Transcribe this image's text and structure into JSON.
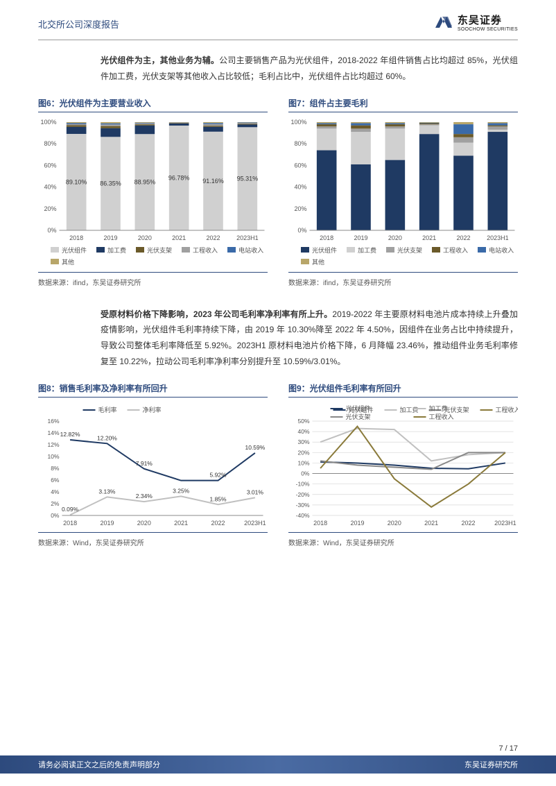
{
  "header": {
    "title": "北交所公司深度报告",
    "logo_cn": "东吴证券",
    "logo_en": "SOOCHOW SECURITIES"
  },
  "para1": {
    "bold": "光伏组件为主，其他业务为辅。",
    "rest": "公司主要销售产品为光伏组件，2018-2022 年组件销售占比均超过 85%，光伏组件加工费，光伏支架等其他收入占比较低；毛利占比中，光伏组件占比均超过 60%。"
  },
  "para2": {
    "bold": "受原材料价格下降影响，2023 年公司毛利率净利率有所上升。",
    "rest": "2019-2022 年主要原材料电池片成本持续上升叠加疫情影响，光伏组件毛利率持续下降，由 2019 年 10.30%降至 2022 年 4.50%，因组件在业务占比中持续提升，导致公司整体毛利率降低至 5.92%。2023H1 原材料电池片价格下降，6 月降幅 23.46%，推动组件业务毛利率修复至 10.22%，拉动公司毛利率净利率分别提升至 10.59%/3.01%。"
  },
  "chart6": {
    "title": "图6：光伏组件为主要营业收入",
    "type": "stacked-bar",
    "categories": [
      "2018",
      "2019",
      "2020",
      "2021",
      "2022",
      "2023H1"
    ],
    "series": [
      {
        "name": "光伏组件",
        "color": "#d0d0d0",
        "values": [
          89.1,
          86.35,
          88.95,
          96.78,
          91.16,
          95.31
        ]
      },
      {
        "name": "加工费",
        "color": "#1f3a63",
        "values": [
          6.5,
          8.0,
          8.0,
          2.0,
          4.5,
          2.5
        ]
      },
      {
        "name": "光伏支架",
        "color": "#6b5a2a",
        "values": [
          1.5,
          2.0,
          1.0,
          0.5,
          1.0,
          0.7
        ]
      },
      {
        "name": "工程收入",
        "color": "#a0a0a0",
        "values": [
          1.0,
          1.5,
          1.0,
          0.3,
          1.5,
          0.7
        ]
      },
      {
        "name": "电站收入",
        "color": "#3a6aa8",
        "values": [
          1.0,
          1.0,
          0.5,
          0.2,
          1.0,
          0.5
        ]
      },
      {
        "name": "其他",
        "color": "#b8a66a",
        "values": [
          0.9,
          1.15,
          0.55,
          0.22,
          0.84,
          0.29
        ]
      }
    ],
    "ylim": [
      0,
      100
    ],
    "ytick_step": 20,
    "yticks": [
      "0%",
      "20%",
      "40%",
      "60%",
      "80%",
      "100%"
    ],
    "bar_labels": [
      "89.10%",
      "86.35%",
      "88.95%",
      "96.78%",
      "91.16%",
      "95.31%"
    ],
    "legend_cols": 3,
    "source": "数据来源：ifind，东吴证券研究所"
  },
  "chart7": {
    "title": "图7：组件占主要毛利",
    "type": "stacked-bar",
    "categories": [
      "2018",
      "2019",
      "2020",
      "2021",
      "2022",
      "2023H1"
    ],
    "series": [
      {
        "name": "光伏组件",
        "color": "#1f3a63",
        "values": [
          74,
          61,
          65,
          89,
          69,
          91
        ]
      },
      {
        "name": "加工费",
        "color": "#d0d0d0",
        "values": [
          20,
          30,
          29,
          8,
          12,
          2
        ]
      },
      {
        "name": "光伏支架",
        "color": "#a0a0a0",
        "values": [
          2,
          3,
          2,
          1,
          5,
          3
        ]
      },
      {
        "name": "工程收入",
        "color": "#6b5a2a",
        "values": [
          2,
          3,
          2,
          1,
          3,
          1
        ]
      },
      {
        "name": "电站收入",
        "color": "#3a6aa8",
        "values": [
          1,
          2,
          1,
          0.5,
          9,
          2
        ]
      },
      {
        "name": "其他",
        "color": "#b8a66a",
        "values": [
          1,
          1,
          1,
          0.5,
          2,
          1
        ]
      }
    ],
    "ylim": [
      0,
      100
    ],
    "ytick_step": 20,
    "yticks": [
      "0%",
      "20%",
      "40%",
      "60%",
      "80%",
      "100%"
    ],
    "legend_cols": 3,
    "source": "数据来源：ifind，东吴证券研究所"
  },
  "chart8": {
    "title": "图8：销售毛利率及净利率有所回升",
    "type": "line",
    "categories": [
      "2018",
      "2019",
      "2020",
      "2021",
      "2022",
      "2023H1"
    ],
    "series": [
      {
        "name": "毛利率",
        "color": "#1f3a63",
        "width": 2,
        "values": [
          12.82,
          12.2,
          7.91,
          5.92,
          5.92,
          10.59
        ],
        "labels": [
          "12.82%",
          "12.20%",
          "7.91%",
          "",
          "5.92%",
          "10.59%"
        ]
      },
      {
        "name": "净利率",
        "color": "#c0c0c0",
        "width": 2,
        "values": [
          0.09,
          3.13,
          2.34,
          3.25,
          1.85,
          3.01
        ],
        "labels": [
          "0.09%",
          "3.13%",
          "2.34%",
          "3.25%",
          "1.85%",
          "3.01%"
        ]
      }
    ],
    "ylim": [
      0,
      16
    ],
    "ytick_step": 2,
    "yticks": [
      "0%",
      "2%",
      "4%",
      "6%",
      "8%",
      "10%",
      "12%",
      "14%",
      "16%"
    ],
    "legend_pos": "top",
    "source": "数据来源：Wind，东吴证券研究所"
  },
  "chart9": {
    "title": "图9：光伏组件毛利率有所回升",
    "type": "line",
    "categories": [
      "2018",
      "2019",
      "2020",
      "2021",
      "2022",
      "2023H1"
    ],
    "series": [
      {
        "name": "光伏组件",
        "color": "#1f3a63",
        "width": 2,
        "values": [
          11,
          10,
          8,
          5,
          4.5,
          10
        ]
      },
      {
        "name": "加工费",
        "color": "#c0c0c0",
        "width": 2,
        "values": [
          30,
          43,
          42,
          12,
          18,
          20
        ]
      },
      {
        "name": "光伏支架",
        "color": "#888888",
        "width": 2,
        "values": [
          12,
          8,
          6,
          4,
          20,
          20
        ]
      },
      {
        "name": "工程收入",
        "color": "#8a7a3a",
        "width": 2,
        "values": [
          5,
          45,
          -5,
          -32,
          -10,
          20
        ]
      }
    ],
    "ylim": [
      -40,
      50
    ],
    "ytick_step": 10,
    "yticks": [
      "-40%",
      "-30%",
      "-20%",
      "-10%",
      "0%",
      "10%",
      "20%",
      "30%",
      "40%",
      "50%"
    ],
    "grid_color": "#d8d8d8",
    "legend_pos": "top",
    "source": "数据来源：Wind，东吴证券研究所"
  },
  "page_num": "7 / 17",
  "footer": {
    "left": "请务必阅读正文之后的免责声明部分",
    "right": "东吴证券研究所"
  },
  "colors": {
    "brand": "#2d4a7d"
  }
}
